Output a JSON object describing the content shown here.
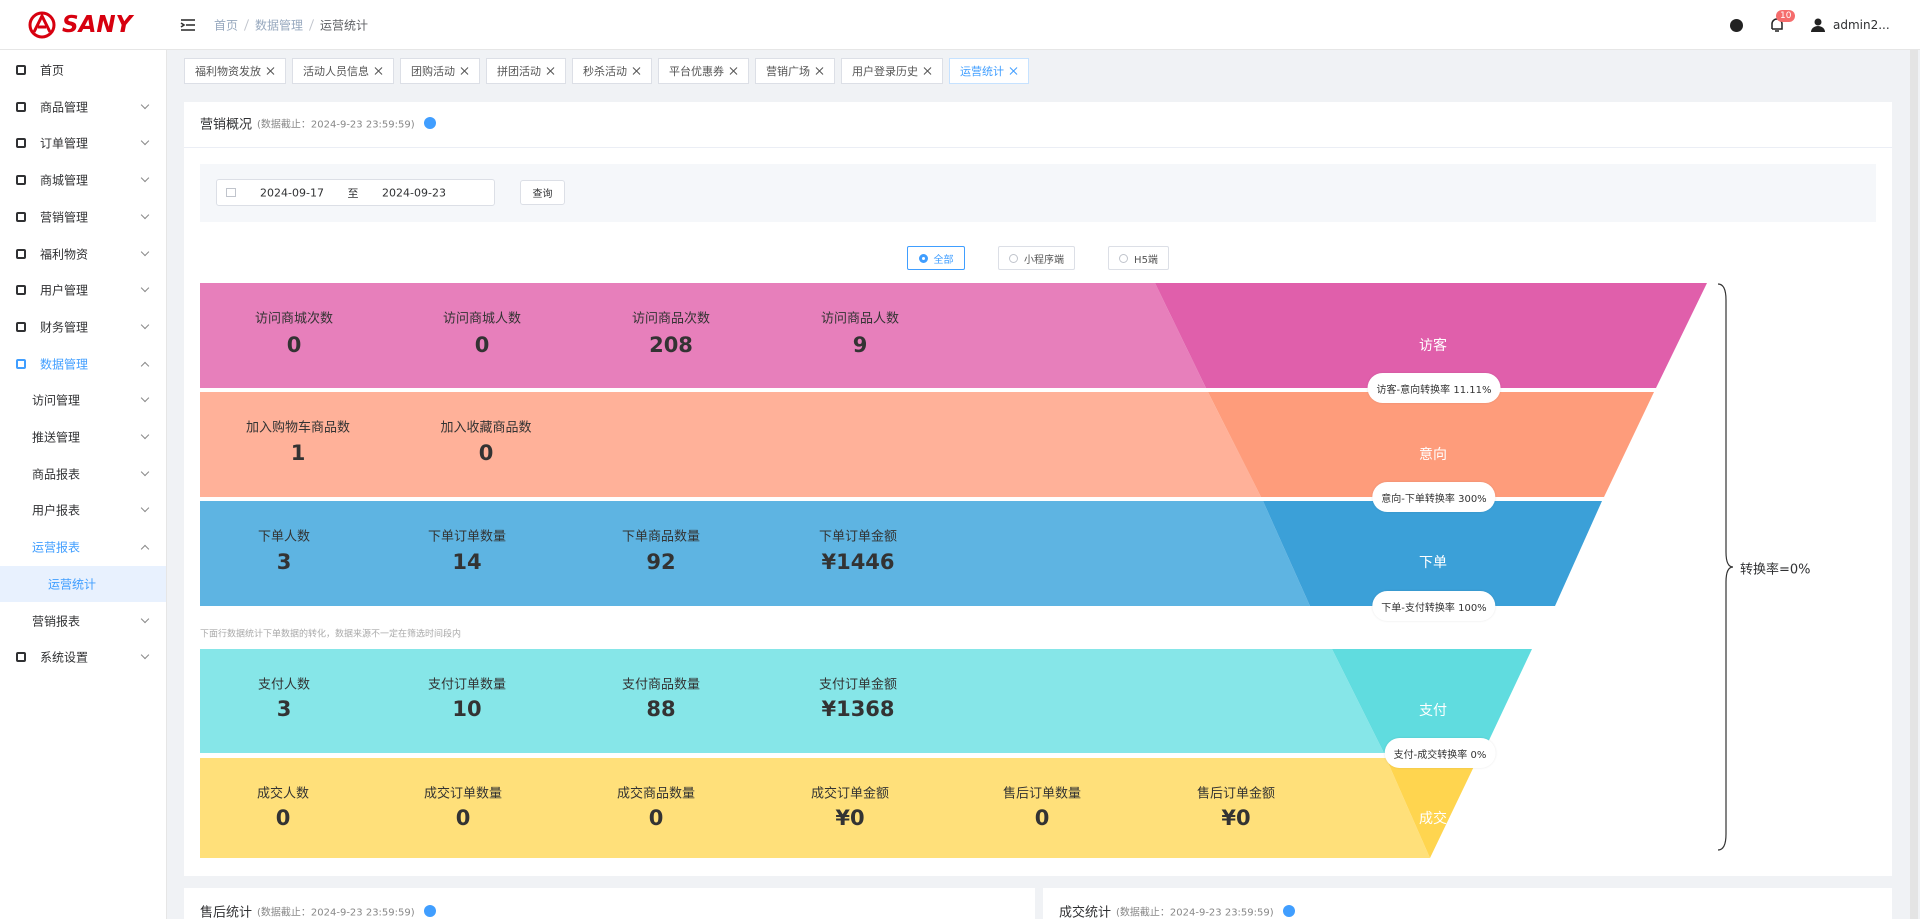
{
  "header": {
    "logo": "SANY",
    "breadcrumb": [
      "首页",
      "数据管理",
      "运营统计"
    ],
    "notification_count": "10",
    "user": "admin2..."
  },
  "sidebar": [
    {
      "label": "首页",
      "level": 0,
      "state": "none"
    },
    {
      "label": "商品管理",
      "level": 0,
      "state": "collapsed"
    },
    {
      "label": "订单管理",
      "level": 0,
      "state": "collapsed"
    },
    {
      "label": "商城管理",
      "level": 0,
      "state": "collapsed"
    },
    {
      "label": "营销管理",
      "level": 0,
      "state": "collapsed"
    },
    {
      "label": "福利物资",
      "level": 0,
      "state": "collapsed"
    },
    {
      "label": "用户管理",
      "level": 0,
      "state": "collapsed"
    },
    {
      "label": "财务管理",
      "level": 0,
      "state": "collapsed"
    },
    {
      "label": "数据管理",
      "level": 0,
      "state": "expanded"
    },
    {
      "label": "访问管理",
      "level": 1,
      "state": "collapsed"
    },
    {
      "label": "推送管理",
      "level": 1,
      "state": "collapsed"
    },
    {
      "label": "商品报表",
      "level": 1,
      "state": "collapsed"
    },
    {
      "label": "用户报表",
      "level": 1,
      "state": "collapsed"
    },
    {
      "label": "运营报表",
      "level": 1,
      "state": "expanded"
    },
    {
      "label": "运营统计",
      "level": 2,
      "state": "selected"
    },
    {
      "label": "营销报表",
      "level": 1,
      "state": "collapsed"
    },
    {
      "label": "系统设置",
      "level": 0,
      "state": "collapsed"
    }
  ],
  "tabs": [
    {
      "label": "福利物资发放"
    },
    {
      "label": "活动人员信息"
    },
    {
      "label": "团购活动"
    },
    {
      "label": "拼团活动"
    },
    {
      "label": "秒杀活动"
    },
    {
      "label": "平台优惠券"
    },
    {
      "label": "营销广场"
    },
    {
      "label": "用户登录历史"
    },
    {
      "label": "运营统计",
      "active": true
    }
  ],
  "overview": {
    "title": "营销概况",
    "timestamp": "(数据截止：2024-9-23 23:59:59)",
    "date_start": "2024-09-17",
    "date_sep": "至",
    "date_end": "2024-09-23",
    "query_button": "查询",
    "channels": [
      {
        "label": "全部",
        "selected": true
      },
      {
        "label": "小程序端",
        "selected": false
      },
      {
        "label": "H5端",
        "selected": false
      }
    ],
    "stages": [
      {
        "name": "访客",
        "conversion": "访客-意向转换率 11.11%",
        "metrics": [
          {
            "label": "访问商城次数",
            "value": "0"
          },
          {
            "label": "访问商城人数",
            "value": "0"
          },
          {
            "label": "访问商品次数",
            "value": "208"
          },
          {
            "label": "访问商品人数",
            "value": "9"
          }
        ]
      },
      {
        "name": "意向",
        "conversion": "意向-下单转换率 300%",
        "metrics": [
          {
            "label": "加入购物车商品数",
            "value": "1"
          },
          {
            "label": "加入收藏商品数",
            "value": "0"
          }
        ]
      },
      {
        "name": "下单",
        "conversion": "下单-支付转换率 100%",
        "metrics": [
          {
            "label": "下单人数",
            "value": "3"
          },
          {
            "label": "下单订单数量",
            "value": "14"
          },
          {
            "label": "下单商品数量",
            "value": "92"
          },
          {
            "label": "下单订单金额",
            "value": "¥1446"
          }
        ]
      },
      {
        "name": "支付",
        "conversion": "支付-成交转换率 0%",
        "metrics": [
          {
            "label": "支付人数",
            "value": "3"
          },
          {
            "label": "支付订单数量",
            "value": "10"
          },
          {
            "label": "支付商品数量",
            "value": "88"
          },
          {
            "label": "支付订单金额",
            "value": "¥1368"
          }
        ]
      },
      {
        "name": "成交",
        "metrics": [
          {
            "label": "成交人数",
            "value": "0"
          },
          {
            "label": "成交订单数量",
            "value": "0"
          },
          {
            "label": "成交商品数量",
            "value": "0"
          },
          {
            "label": "成交订单金额",
            "value": "¥0"
          },
          {
            "label": "售后订单数量",
            "value": "0"
          },
          {
            "label": "售后订单金额",
            "value": "¥0"
          }
        ]
      }
    ],
    "note": "下面行数据统计下单数据的转化，数据来源不一定在筛选时间段内",
    "total_conversion": "转换率=0%"
  },
  "bottom_cards": [
    {
      "title": "售后统计",
      "timestamp": "(数据截止：2024-9-23 23:59:59)"
    },
    {
      "title": "成交统计",
      "timestamp": "(数据截止：2024-9-23 23:59:59)"
    }
  ]
}
